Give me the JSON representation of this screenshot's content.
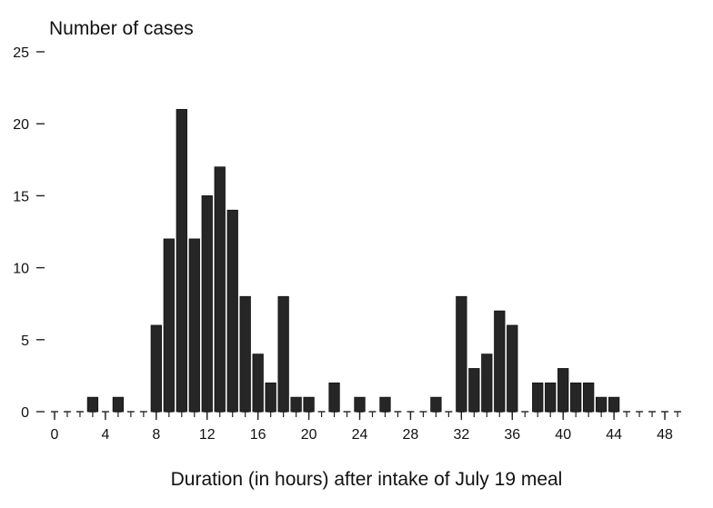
{
  "chart_data": {
    "type": "bar",
    "title": "",
    "ylabel": "Number of cases",
    "xlabel": "Duration (in hours) after intake of July 19 meal",
    "xlim": [
      0,
      50
    ],
    "ylim": [
      0,
      25
    ],
    "grid": false,
    "x_ticks": [
      0,
      4,
      8,
      12,
      16,
      20,
      24,
      28,
      32,
      36,
      40,
      44,
      48
    ],
    "y_ticks": [
      0,
      5,
      10,
      15,
      20,
      25
    ],
    "x": [
      0,
      1,
      2,
      3,
      4,
      5,
      6,
      7,
      8,
      9,
      10,
      11,
      12,
      13,
      14,
      15,
      16,
      17,
      18,
      19,
      20,
      21,
      22,
      23,
      24,
      25,
      26,
      27,
      28,
      29,
      30,
      31,
      32,
      33,
      34,
      35,
      36,
      37,
      38,
      39,
      40,
      41,
      42,
      43,
      44,
      45,
      46,
      47,
      48,
      49
    ],
    "values": [
      0,
      0,
      0,
      1,
      0,
      1,
      0,
      0,
      6,
      12,
      21,
      12,
      15,
      17,
      14,
      8,
      4,
      2,
      8,
      1,
      1,
      0,
      2,
      0,
      1,
      0,
      1,
      0,
      0,
      0,
      1,
      0,
      8,
      3,
      4,
      7,
      6,
      0,
      2,
      2,
      3,
      2,
      2,
      1,
      1,
      0,
      0,
      0,
      0,
      0
    ],
    "bar_color": "#262626"
  }
}
